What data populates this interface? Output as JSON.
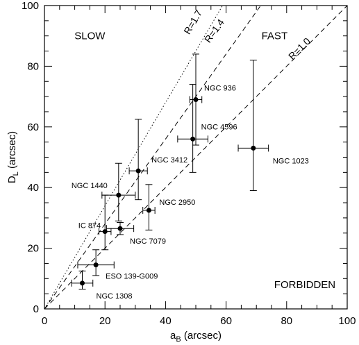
{
  "chart_data": {
    "type": "scatter",
    "title": "",
    "xlabel": "a",
    "xlabel_sub": "B",
    "xlabel_unit": " (arcsec)",
    "ylabel": "D",
    "ylabel_sub": "L",
    "ylabel_unit": " (arcsec)",
    "xlim": [
      0,
      100
    ],
    "ylim": [
      0,
      100
    ],
    "x_ticks": [
      0,
      20,
      40,
      60,
      80,
      100
    ],
    "y_ticks": [
      0,
      20,
      40,
      60,
      80,
      100
    ],
    "grid": false,
    "points": [
      {
        "name": "NGC 936",
        "x": 50,
        "y": 69,
        "x_err": 2,
        "y_err_low": 15,
        "y_err_high": 15
      },
      {
        "name": "NGC 4596",
        "x": 49,
        "y": 56,
        "x_err": 5,
        "y_err_low": 11,
        "y_err_high": 18
      },
      {
        "name": "NGC 1023",
        "x": 69,
        "y": 53,
        "x_err": 5,
        "y_err_low": 14,
        "y_err_high": 29
      },
      {
        "name": "NGC 3412",
        "x": 31,
        "y": 45.5,
        "x_err": 3,
        "y_err_low": 9.5,
        "y_err_high": 17
      },
      {
        "name": "NGC 1440",
        "x": 24.5,
        "y": 37.5,
        "x_err": 5.5,
        "y_err_low": 8.5,
        "y_err_high": 10.5
      },
      {
        "name": "NGC 2950",
        "x": 34.5,
        "y": 32.5,
        "x_err": 2,
        "y_err_low": 6.5,
        "y_err_high": 8.5
      },
      {
        "name": "IC 874",
        "x": 20,
        "y": 25.5,
        "x_err": 2,
        "y_err_low": 6,
        "y_err_high": 12
      },
      {
        "name": "NGC 7079",
        "x": 25,
        "y": 26.5,
        "x_err": 4.5,
        "y_err_low": 2,
        "y_err_high": 2
      },
      {
        "name": "ESO 139-G009",
        "x": 17,
        "y": 14.5,
        "x_err": 6,
        "y_err_low": 3.5,
        "y_err_high": 5
      },
      {
        "name": "NGC 1308",
        "x": 12.5,
        "y": 8.5,
        "x_err": 3.5,
        "y_err_low": 2,
        "y_err_high": 4
      }
    ],
    "reference_lines": [
      {
        "label": "R=1.7",
        "slope": 1.7,
        "style": "dotted"
      },
      {
        "label": "R=1.4",
        "slope": 1.4,
        "style": "dashed"
      },
      {
        "label": "R=1.0",
        "slope": 1.0,
        "style": "dashed"
      }
    ],
    "region_labels": [
      {
        "text": "SLOW",
        "x": 15,
        "y": 90
      },
      {
        "text": "FAST",
        "x": 76,
        "y": 90
      },
      {
        "text": "FORBIDDEN",
        "x": 86,
        "y": 8
      }
    ]
  }
}
